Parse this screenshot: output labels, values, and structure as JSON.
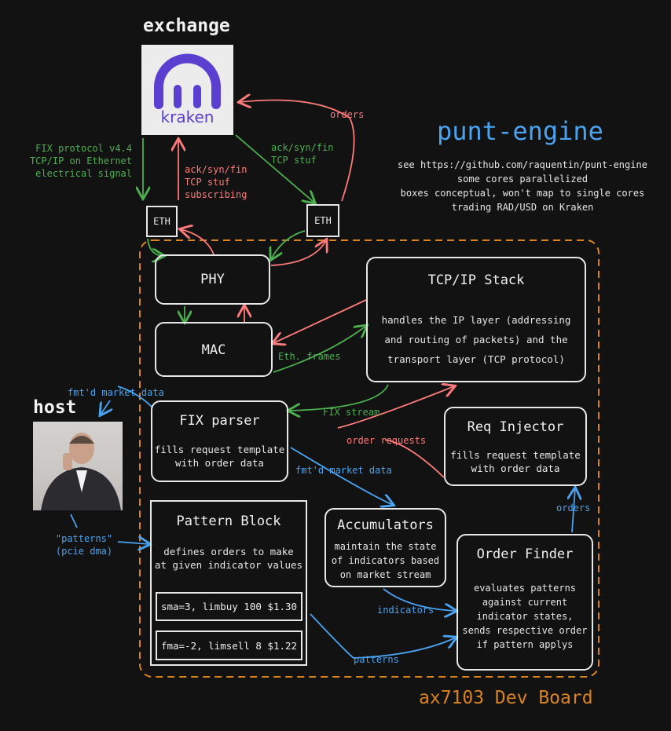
{
  "exchange": {
    "heading": "exchange",
    "logo_text": "kraken",
    "brand_color": "#5b3fd0"
  },
  "host": {
    "heading": "host"
  },
  "project": {
    "title": "punt-engine",
    "lines": [
      "see https://github.com/raquentin/punt-engine",
      "some cores parallelized",
      "boxes conceptual, won't map to single cores",
      "trading RAD/USD on Kraken"
    ]
  },
  "board": {
    "label": "ax7103 Dev Board"
  },
  "eth_left": "ETH",
  "eth_right": "ETH",
  "blocks": {
    "phy": "PHY",
    "mac": "MAC",
    "tcp": {
      "title": "TCP/IP Stack",
      "desc": [
        "handles the IP layer (addressing",
        "and routing of packets) and the",
        "transport layer (TCP protocol)"
      ]
    },
    "fix": {
      "title": "FIX parser",
      "desc": [
        "fills request template",
        "with order data"
      ]
    },
    "req": {
      "title": "Req Injector",
      "desc": [
        "fills request template",
        "with order data"
      ]
    },
    "pattern": {
      "title": "Pattern Block",
      "desc": [
        "defines orders to make",
        "at given indicator values"
      ],
      "rows": [
        "sma=3, limbuy 100 $1.30",
        "fma=-2, limsell 8 $1.22"
      ]
    },
    "acc": {
      "title": "Accumulators",
      "desc": [
        "maintain the state",
        "of indicators based",
        "on market stream"
      ]
    },
    "order": {
      "title": "Order Finder",
      "desc": [
        "evaluates patterns",
        "against current",
        "indicator states,",
        "sends respective order",
        "if pattern applys"
      ]
    }
  },
  "labels": {
    "fix_protocol": [
      "FIX protocol v4.4",
      "TCP/IP on Ethernet",
      "electrical signal"
    ],
    "ack_left": [
      "ack/syn/fin",
      "TCP stuf",
      "subscribing"
    ],
    "ack_right": [
      "ack/syn/fin",
      "TCP stuf"
    ],
    "orders_top": "orders",
    "eth_frames": "Eth. frames",
    "fix_stream": "FIX stream",
    "order_requests": "order requests",
    "fmtd_top": "fmt'd market data",
    "fmtd_mid": "fmt'd market data",
    "patterns_host": [
      "\"patterns\"",
      "(pcie dma)"
    ],
    "indicators": "indicators",
    "patterns_bottom": "patterns",
    "orders_right": "orders"
  },
  "colors": {
    "green": "#4caf50",
    "red": "#ff7b7b",
    "blue": "#4aa3f0",
    "orange": "#d9831f"
  }
}
